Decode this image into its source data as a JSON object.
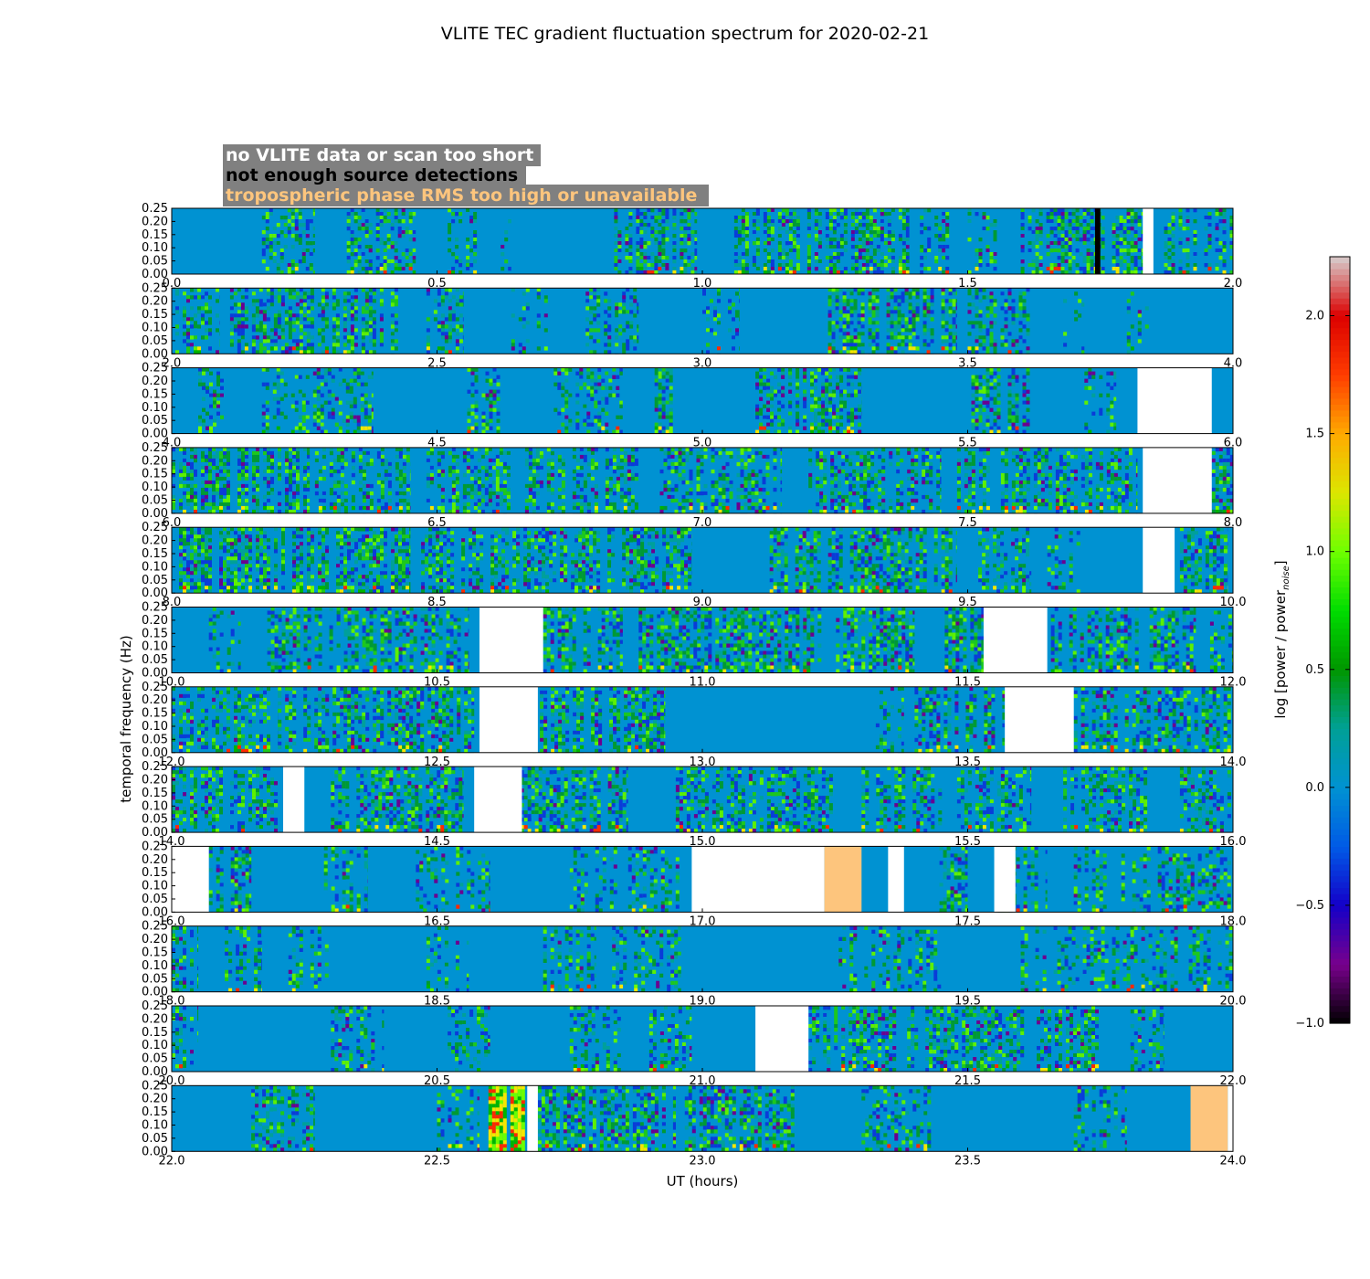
{
  "chart_data": {
    "type": "heatmap",
    "title": "VLITE TEC gradient fluctuation spectrum for 2020-02-21",
    "xlabel": "UT (hours)",
    "ylabel": "temporal frequency (Hz)",
    "ylim": [
      0,
      0.25
    ],
    "ytick_labels": [
      "0.00",
      "0.05",
      "0.10",
      "0.15",
      "0.20",
      "0.25"
    ],
    "colorbar": {
      "label": "log [power / power",
      "label_subscript": "noise",
      "label_close": "]",
      "range": [
        -1.0,
        2.25
      ],
      "tick_labels": [
        "−1.0",
        "−0.5",
        "0.0",
        "0.5",
        "1.0",
        "1.5",
        "2.0"
      ],
      "tick_values": [
        -1.0,
        -0.5,
        0.0,
        0.5,
        1.0,
        1.5,
        2.0
      ]
    },
    "legend": [
      {
        "text": "no VLITE data or scan too short",
        "color": "#ffffff"
      },
      {
        "text": "not enough source detections",
        "color": "#000000"
      },
      {
        "text": "tropospheric phase RMS too high or unavailable",
        "color": "#fdc57d"
      }
    ],
    "legend_background": "#808080",
    "colors": {
      "quiet": "#0092d2",
      "no_data": "#ffffff",
      "few_detections": "#000000",
      "troposphere": "#fdc57d"
    },
    "panels": [
      {
        "xlim": [
          0,
          2
        ],
        "xtick_labels": [
          "0.0",
          "0.5",
          "1.0",
          "1.5",
          "2.0"
        ],
        "activity": [
          [
            0.17,
            0.27,
            0.5
          ],
          [
            0.33,
            0.46,
            0.6
          ],
          [
            0.52,
            0.58,
            0.45
          ],
          [
            0.62,
            0.64,
            0.3
          ],
          [
            0.82,
            0.99,
            0.85
          ],
          [
            1.06,
            1.39,
            0.85
          ],
          [
            1.41,
            1.47,
            0.5
          ],
          [
            1.5,
            1.56,
            0.4
          ],
          [
            1.6,
            1.85,
            0.8
          ],
          [
            1.87,
            2.0,
            0.7
          ]
        ],
        "white": [
          [
            1.83,
            1.85
          ]
        ],
        "black": [
          [
            1.74,
            1.75
          ]
        ],
        "orange": []
      },
      {
        "xlim": [
          2,
          4
        ],
        "xtick_labels": [
          "2.0",
          "2.5",
          "3.0",
          "3.5",
          "4.0"
        ],
        "activity": [
          [
            2.0,
            2.09,
            0.6
          ],
          [
            2.11,
            2.43,
            0.8
          ],
          [
            2.48,
            2.55,
            0.6
          ],
          [
            2.64,
            2.72,
            0.55
          ],
          [
            2.78,
            2.88,
            0.6
          ],
          [
            3.0,
            3.07,
            0.4
          ],
          [
            3.23,
            3.48,
            0.85
          ],
          [
            3.5,
            3.62,
            0.6
          ],
          [
            3.68,
            3.72,
            0.3
          ],
          [
            3.8,
            3.85,
            0.4
          ]
        ],
        "white": [],
        "black": [],
        "orange": []
      },
      {
        "xlim": [
          4,
          6
        ],
        "xtick_labels": [
          "4.0",
          "4.5",
          "5.0",
          "5.5",
          "6.0"
        ],
        "activity": [
          [
            4.05,
            4.1,
            0.5
          ],
          [
            4.17,
            4.38,
            0.5
          ],
          [
            4.55,
            4.62,
            0.6
          ],
          [
            4.72,
            4.85,
            0.5
          ],
          [
            4.91,
            4.95,
            1.0
          ],
          [
            5.1,
            5.3,
            0.7
          ],
          [
            5.5,
            5.62,
            0.8
          ],
          [
            5.72,
            5.78,
            0.4
          ]
        ],
        "white": [
          [
            5.82,
            5.96
          ]
        ],
        "black": [],
        "orange": []
      },
      {
        "xlim": [
          6,
          8
        ],
        "xtick_labels": [
          "6.0",
          "6.5",
          "7.0",
          "7.5",
          "8.0"
        ],
        "activity": [
          [
            6.0,
            6.26,
            0.9
          ],
          [
            6.27,
            6.45,
            0.6
          ],
          [
            6.48,
            6.88,
            0.7
          ],
          [
            6.92,
            7.15,
            0.6
          ],
          [
            7.2,
            7.45,
            0.7
          ],
          [
            7.48,
            7.82,
            0.7
          ],
          [
            7.96,
            8.0,
            0.8
          ]
        ],
        "white": [
          [
            7.83,
            7.96
          ]
        ],
        "black": [],
        "orange": []
      },
      {
        "xlim": [
          8,
          10
        ],
        "xtick_labels": [
          "8.0",
          "8.5",
          "9.0",
          "9.5",
          "10.0"
        ],
        "activity": [
          [
            8.0,
            8.45,
            0.9
          ],
          [
            8.47,
            8.98,
            0.75
          ],
          [
            9.12,
            9.48,
            0.8
          ],
          [
            9.52,
            9.62,
            0.6
          ],
          [
            9.65,
            9.72,
            0.4
          ],
          [
            9.9,
            9.99,
            0.7
          ]
        ],
        "white": [
          [
            9.83,
            9.89
          ]
        ],
        "black": [],
        "orange": []
      },
      {
        "xlim": [
          10,
          12
        ],
        "xtick_labels": [
          "10.0",
          "10.5",
          "11.0",
          "11.5",
          "12.0"
        ],
        "activity": [
          [
            10.07,
            10.13,
            0.4
          ],
          [
            10.18,
            10.56,
            0.75
          ],
          [
            10.7,
            10.85,
            0.65
          ],
          [
            10.88,
            11.4,
            0.8
          ],
          [
            11.45,
            11.53,
            1.0
          ],
          [
            11.65,
            11.93,
            0.8
          ],
          [
            11.95,
            12.0,
            0.5
          ]
        ],
        "white": [
          [
            10.58,
            10.7
          ],
          [
            11.53,
            11.65
          ]
        ],
        "black": [],
        "orange": []
      },
      {
        "xlim": [
          12,
          14
        ],
        "xtick_labels": [
          "12.0",
          "12.5",
          "13.0",
          "13.5",
          "14.0"
        ],
        "activity": [
          [
            12.0,
            12.2,
            0.7
          ],
          [
            12.2,
            12.57,
            0.8
          ],
          [
            12.68,
            12.93,
            0.85
          ],
          [
            13.32,
            13.38,
            0.4
          ],
          [
            13.4,
            13.57,
            0.75
          ],
          [
            13.7,
            14.0,
            0.7
          ]
        ],
        "white": [
          [
            12.58,
            12.69
          ],
          [
            13.57,
            13.7
          ]
        ],
        "black": [],
        "orange": []
      },
      {
        "xlim": [
          14,
          16
        ],
        "xtick_labels": [
          "14.0",
          "14.5",
          "15.0",
          "15.5",
          "16.0"
        ],
        "activity": [
          [
            14.0,
            14.2,
            0.65
          ],
          [
            14.3,
            14.55,
            0.7
          ],
          [
            14.65,
            14.86,
            0.75
          ],
          [
            14.95,
            15.25,
            0.75
          ],
          [
            15.3,
            15.46,
            0.7
          ],
          [
            15.48,
            15.62,
            0.55
          ],
          [
            15.68,
            15.85,
            0.65
          ],
          [
            15.9,
            16.0,
            0.6
          ]
        ],
        "white": [
          [
            14.21,
            14.25
          ],
          [
            14.57,
            14.66
          ]
        ],
        "black": [],
        "orange": []
      },
      {
        "xlim": [
          16,
          18
        ],
        "xtick_labels": [
          "16.0",
          "16.5",
          "17.0",
          "17.5",
          "18.0"
        ],
        "activity": [
          [
            16.07,
            16.15,
            0.75
          ],
          [
            16.28,
            16.37,
            0.7
          ],
          [
            16.46,
            16.6,
            0.45
          ],
          [
            16.75,
            16.98,
            0.5
          ],
          [
            17.44,
            17.5,
            0.7
          ],
          [
            17.55,
            17.65,
            0.5
          ],
          [
            17.7,
            18.0,
            0.55
          ]
        ],
        "white": [
          [
            16.0,
            16.07
          ],
          [
            16.98,
            17.23
          ],
          [
            17.35,
            17.38
          ],
          [
            17.55,
            17.59
          ]
        ],
        "black": [],
        "orange": [
          [
            17.23,
            17.3
          ]
        ]
      },
      {
        "xlim": [
          18,
          20
        ],
        "xtick_labels": [
          "18.0",
          "18.5",
          "19.0",
          "19.5",
          "20.0"
        ],
        "activity": [
          [
            18.0,
            18.05,
            0.7
          ],
          [
            18.1,
            18.17,
            0.55
          ],
          [
            18.22,
            18.3,
            0.45
          ],
          [
            18.48,
            18.56,
            0.4
          ],
          [
            18.7,
            18.8,
            0.55
          ],
          [
            18.83,
            18.96,
            0.6
          ],
          [
            19.25,
            19.45,
            0.55
          ],
          [
            19.6,
            20.0,
            0.55
          ]
        ],
        "white": [],
        "black": [],
        "orange": []
      },
      {
        "xlim": [
          20,
          22
        ],
        "xtick_labels": [
          "20.0",
          "20.5",
          "21.0",
          "21.5",
          "22.0"
        ],
        "activity": [
          [
            20.0,
            20.05,
            0.5
          ],
          [
            20.3,
            20.4,
            0.55
          ],
          [
            20.52,
            20.6,
            0.45
          ],
          [
            20.75,
            20.85,
            0.5
          ],
          [
            20.9,
            20.98,
            0.45
          ],
          [
            21.2,
            21.62,
            0.75
          ],
          [
            21.63,
            21.75,
            0.65
          ],
          [
            21.8,
            21.87,
            0.6
          ]
        ],
        "white": [
          [
            21.1,
            21.2
          ]
        ],
        "black": [],
        "orange": []
      },
      {
        "xlim": [
          22,
          24
        ],
        "xtick_labels": [
          "22.0",
          "22.5",
          "23.0",
          "23.5",
          "24.0"
        ],
        "activity": [
          [
            22.15,
            22.27,
            0.6
          ],
          [
            22.5,
            22.58,
            0.45
          ],
          [
            22.59,
            22.67,
            1.4
          ],
          [
            22.69,
            22.95,
            0.85
          ],
          [
            22.96,
            23.18,
            0.75
          ],
          [
            23.3,
            23.45,
            0.45
          ],
          [
            23.7,
            23.8,
            0.5
          ]
        ],
        "white": [
          [
            22.67,
            22.69
          ],
          [
            23.99,
            24.0
          ]
        ],
        "black": [],
        "orange": [
          [
            23.92,
            23.99
          ]
        ]
      }
    ]
  }
}
